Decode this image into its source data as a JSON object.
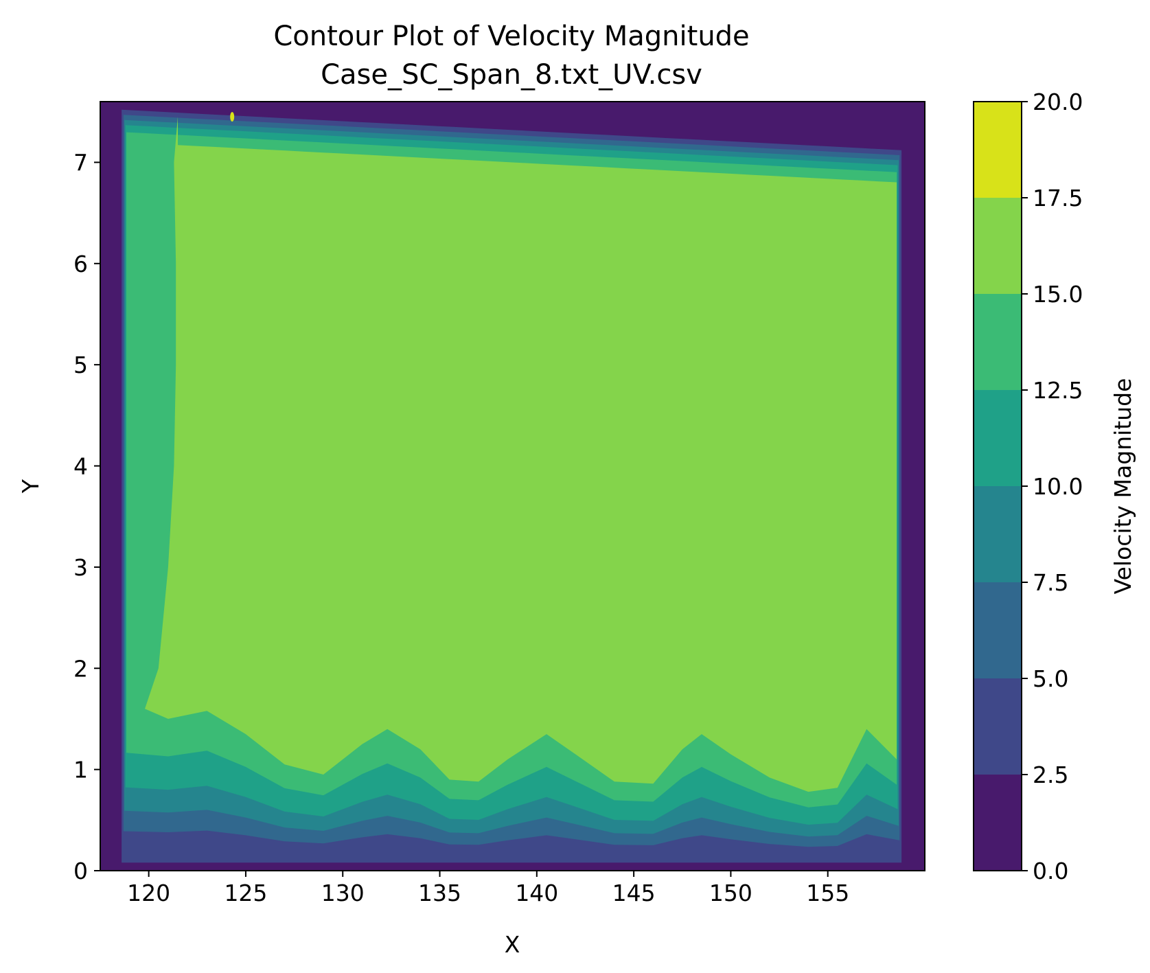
{
  "chart_data": {
    "type": "contour",
    "title": "Contour Plot of Velocity Magnitude",
    "subtitle": "Case_SC_Span_8.txt_UV.csv",
    "xlabel": "X",
    "ylabel": "Y",
    "xlim": [
      117.5,
      160.0
    ],
    "ylim": [
      0,
      7.6
    ],
    "xticks": [
      "120",
      "125",
      "130",
      "135",
      "140",
      "145",
      "150",
      "155"
    ],
    "yticks": [
      "0",
      "1",
      "2",
      "3",
      "4",
      "5",
      "6",
      "7"
    ],
    "colorbar": {
      "label": "Velocity Magnitude",
      "ticks": [
        "0.0",
        "2.5",
        "5.0",
        "7.5",
        "10.0",
        "12.5",
        "15.0",
        "17.5",
        "20.0"
      ],
      "levels": [
        0,
        2.5,
        5.0,
        7.5,
        10.0,
        12.5,
        15.0,
        17.5,
        20.0
      ],
      "colors": [
        "#481a6c",
        "#3f4889",
        "#31688e",
        "#25858e",
        "#1fa188",
        "#3bbb75",
        "#84d44b",
        "#d8e219"
      ]
    },
    "domain": {
      "x_range": [
        118.6,
        158.8
      ],
      "y_top_left": 7.52,
      "y_top_right": 7.12,
      "background_value": "0.0-2.5"
    },
    "bottom_wave": {
      "x": [
        118.6,
        121,
        123,
        125,
        127,
        129,
        131,
        132.3,
        134,
        135.5,
        137,
        138.5,
        140.5,
        142,
        144,
        146,
        147.5,
        148.5,
        150,
        152,
        154,
        155.5,
        157,
        158.8
      ],
      "core_edge_y": [
        1.55,
        1.5,
        1.58,
        1.35,
        1.05,
        0.95,
        1.25,
        1.4,
        1.2,
        0.9,
        0.88,
        1.1,
        1.35,
        1.15,
        0.88,
        0.86,
        1.2,
        1.35,
        1.15,
        0.92,
        0.78,
        0.82,
        1.4,
        1.1
      ]
    },
    "left_strip_edge": {
      "y": [
        1.6,
        2.0,
        3.0,
        4.0,
        5.0,
        6.0,
        7.0,
        7.45
      ],
      "x": [
        119.8,
        120.5,
        121.0,
        121.3,
        121.4,
        121.4,
        121.3,
        121.5
      ]
    },
    "hotspot": {
      "x": 124.3,
      "y": 7.45,
      "level": "17.5-20.0"
    }
  }
}
